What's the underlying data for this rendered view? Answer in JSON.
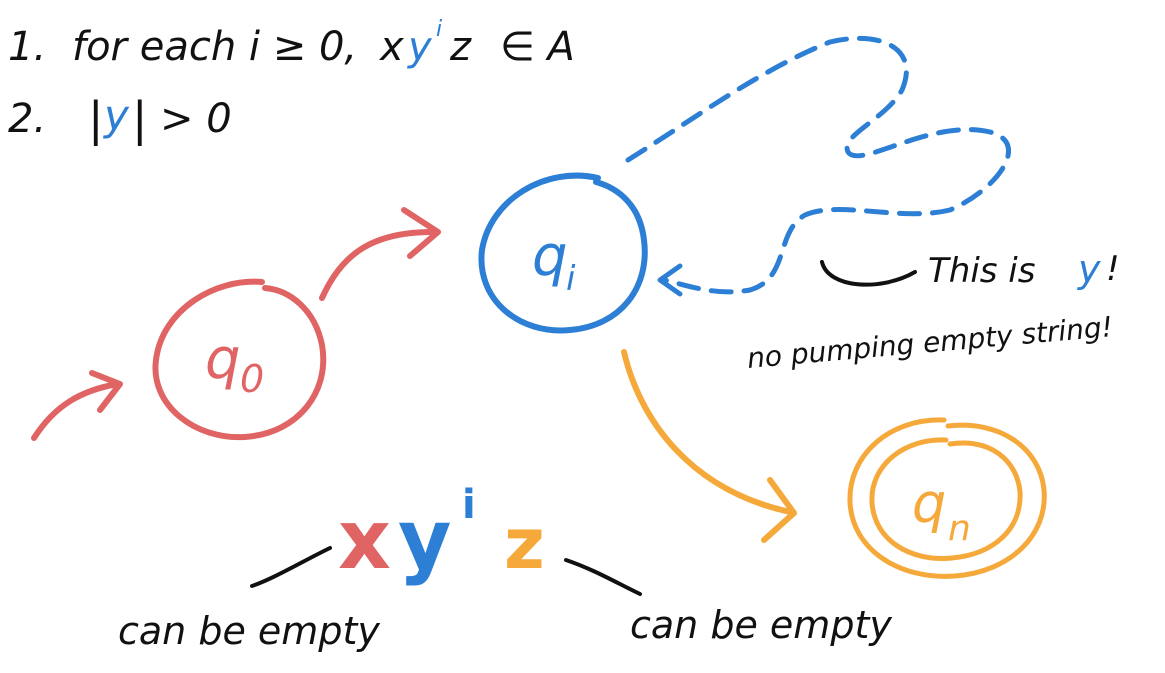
{
  "colors": {
    "black": "#111111",
    "blue": "#2c7fd4",
    "red": "#e06464",
    "orange": "#f5a93a"
  },
  "conditions": {
    "line1": {
      "number": "1.",
      "prefix": "for each i ≥ 0,",
      "x": "x",
      "y": "y",
      "i": "i",
      "z": "z",
      "suffix": "∈ A"
    },
    "line2": {
      "number": "2.",
      "bar_open": "|",
      "y": "y",
      "bar_close": "|",
      "suffix": "> 0"
    }
  },
  "states": {
    "q0": {
      "base": "q",
      "sub": "0"
    },
    "qi": {
      "base": "q",
      "sub": "i"
    },
    "qn": {
      "base": "q",
      "sub": "n"
    }
  },
  "annotations": {
    "this_is": "This is",
    "this_is_y": "y",
    "this_is_bang": "!",
    "no_pumping": "no pumping empty string!"
  },
  "decomposition": {
    "x": "x",
    "y": "y",
    "i": "i",
    "z": "z",
    "left_label": "can be empty",
    "right_label": "can be empty"
  }
}
